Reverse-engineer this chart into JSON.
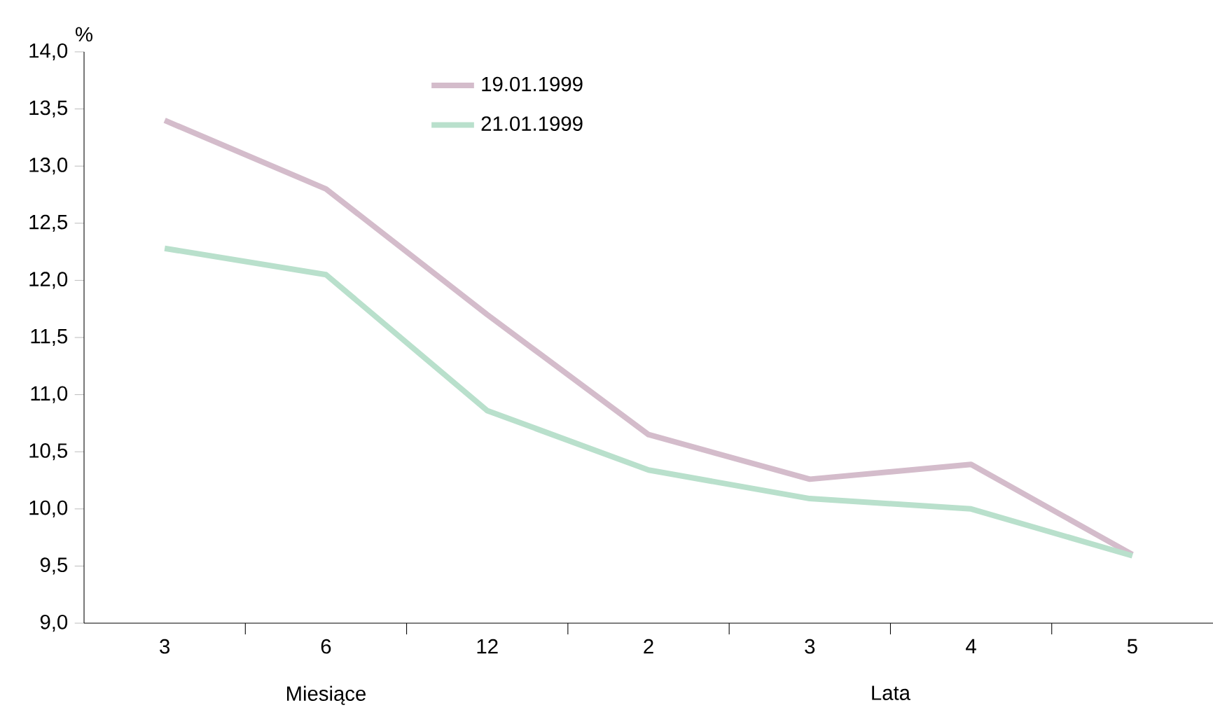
{
  "chart_data": {
    "type": "line",
    "categories": [
      "3",
      "6",
      "12",
      "2",
      "3",
      "4",
      "5"
    ],
    "series": [
      {
        "name": "19.01.1999",
        "color": "#d4bccb",
        "values": [
          13.4,
          12.8,
          11.7,
          10.65,
          10.26,
          10.39,
          9.6
        ]
      },
      {
        "name": "21.01.1999",
        "color": "#b9e0cc",
        "values": [
          12.28,
          12.05,
          10.86,
          10.34,
          10.09,
          10.0,
          9.59
        ]
      }
    ],
    "ylabel": "%",
    "ylim": [
      9,
      14
    ],
    "yticks": [
      {
        "value": 9,
        "label": "9,0"
      },
      {
        "value": 9.5,
        "label": "9,5"
      },
      {
        "value": 10,
        "label": "10,0"
      },
      {
        "value": 10.5,
        "label": "10,5"
      },
      {
        "value": 11,
        "label": "11,0"
      },
      {
        "value": 11.5,
        "label": "11,5"
      },
      {
        "value": 12,
        "label": "12,0"
      },
      {
        "value": 12.5,
        "label": "12,5"
      },
      {
        "value": 13,
        "label": "13,0"
      },
      {
        "value": 13.5,
        "label": "13,5"
      },
      {
        "value": 14,
        "label": "14,0"
      }
    ],
    "annotations": [
      "Miesiące",
      "Lata"
    ],
    "legend": "top",
    "grid": false,
    "marker": "none",
    "line_style": "solid"
  }
}
